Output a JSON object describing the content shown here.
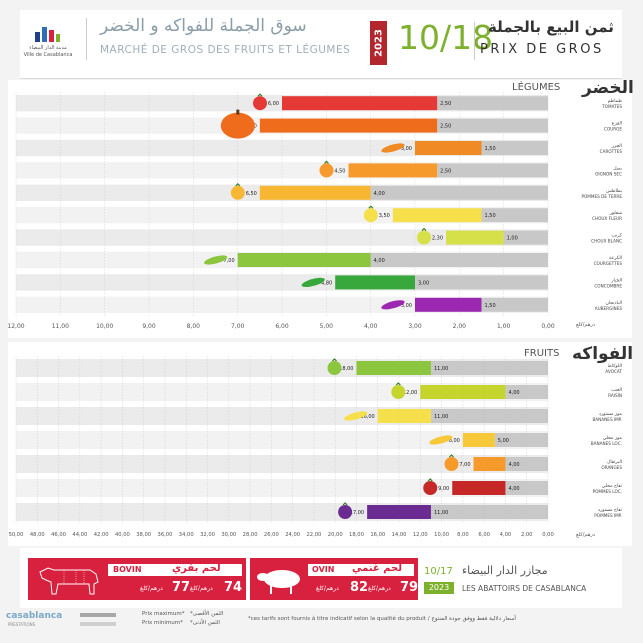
{
  "colors": {
    "brand_green": "#7db02d",
    "brand_red": "#d8203f",
    "gray_bar": "#c8c8c8",
    "dark_bar": "#a8a8a8"
  },
  "header": {
    "logo_caption_ar": "مدينة الدار البيضاء",
    "logo_caption_fr": "Ville de Casablanca",
    "market_title_ar": "سوق الجملة للفواكه و الخضر",
    "market_title_fr": "MARCHÉ DE GROS DES FRUITS ET LÉGUMES",
    "year": "2023",
    "date": "10/18",
    "price_title_ar": "ثمن البيع بالجملة",
    "price_title_fr": "PRIX DE GROS"
  },
  "chart_data": [
    {
      "type": "bar",
      "title": "LÉGUMES",
      "title_ar": "الخضر",
      "xlabel": "درهم/كلغ",
      "xlim": [
        12,
        0
      ],
      "x_ticks": [
        "12,00",
        "11,00",
        "10,00",
        "9,00",
        "8,00",
        "7,00",
        "6,00",
        "5,00",
        "4,00",
        "3,00",
        "2,00",
        "1,00",
        "0,00"
      ],
      "categories": [
        {
          "ar": "طماطم",
          "fr": "TOMATES",
          "max": 6.0,
          "min": 2.5,
          "max_label": "6,00",
          "min_label": "2,50",
          "color": "#e53935",
          "icon": "tomato-icon"
        },
        {
          "ar": "القرع",
          "fr": "COURGE",
          "max": 6.5,
          "min": 2.5,
          "max_label": "6,50",
          "min_label": "2,50",
          "color": "#ef6c1c",
          "icon": "pumpkin-icon"
        },
        {
          "ar": "الجزر",
          "fr": "CAROTTES",
          "max": 3.0,
          "min": 1.5,
          "max_label": "3,00",
          "min_label": "1,50",
          "color": "#f08a24",
          "icon": "carrot-icon"
        },
        {
          "ar": "بصل",
          "fr": "OIGNON SEC",
          "max": 4.5,
          "min": 2.5,
          "max_label": "4,50",
          "min_label": "2,50",
          "color": "#f59a2b",
          "icon": "onion-icon"
        },
        {
          "ar": "بطاطس",
          "fr": "POMMES DE TERRE",
          "max": 6.5,
          "min": 4.0,
          "max_label": "6,50",
          "min_label": "4,00",
          "color": "#f7b733",
          "icon": "potato-icon"
        },
        {
          "ar": "شفلور",
          "fr": "CHOUX FLEUR",
          "max": 3.5,
          "min": 1.5,
          "max_label": "3,50",
          "min_label": "1,50",
          "color": "#f5df4a",
          "icon": "cauliflower-icon"
        },
        {
          "ar": "كرنب",
          "fr": "CHOUX BLANC",
          "max": 2.3,
          "min": 1.0,
          "max_label": "2,30",
          "min_label": "1,00",
          "color": "#d6e049",
          "icon": "cabbage-icon"
        },
        {
          "ar": "الكرعة",
          "fr": "COURGETTES",
          "max": 7.0,
          "min": 4.0,
          "max_label": "7,00",
          "min_label": "4,00",
          "color": "#8cc63f",
          "icon": "zucchini-icon"
        },
        {
          "ar": "الخيار",
          "fr": "CONCOMBRE",
          "max": 4.8,
          "min": 3.0,
          "max_label": "4,80",
          "min_label": "3,00",
          "color": "#38a83c",
          "icon": "cucumber-icon"
        },
        {
          "ar": "الباذنجان",
          "fr": "AUBERGINES",
          "max": 3.0,
          "min": 1.5,
          "max_label": "3,00",
          "min_label": "1,50",
          "color": "#9c27b0",
          "icon": "eggplant-icon"
        }
      ]
    },
    {
      "type": "bar",
      "title": "FRUITS",
      "title_ar": "الفواكه",
      "xlabel": "درهم/كلغ",
      "xlim": [
        50,
        0
      ],
      "x_ticks": [
        "50,00",
        "48,00",
        "46,00",
        "44,00",
        "42,00",
        "40,00",
        "38,00",
        "36,00",
        "34,00",
        "32,00",
        "30,00",
        "28,00",
        "26,00",
        "24,00",
        "22,00",
        "20,00",
        "18,00",
        "16,00",
        "14,00",
        "12,00",
        "10,00",
        "8,00",
        "6,00",
        "4,00",
        "2,00",
        "0,00"
      ],
      "categories": [
        {
          "ar": "اللوكاط",
          "fr": "AVOCAT",
          "max": 18.0,
          "min": 11.0,
          "max_label": "18,00",
          "min_label": "11,00",
          "color": "#8cc63f",
          "icon": "avocado-icon"
        },
        {
          "ar": "العنب",
          "fr": "RAISIN",
          "max": 12.0,
          "min": 4.0,
          "max_label": "12,00",
          "min_label": "4,00",
          "color": "#c5d52e",
          "icon": "grapes-icon"
        },
        {
          "ar": "موز مستورد",
          "fr": "BANANES IMP.",
          "max": 16.0,
          "min": 11.0,
          "max_label": "16,00",
          "min_label": "11,00",
          "color": "#f5df4a",
          "icon": "banana-imp-icon"
        },
        {
          "ar": "موز محلي",
          "fr": "BANANES LOC.",
          "max": 8.0,
          "min": 5.0,
          "max_label": "8,00",
          "min_label": "5,00",
          "color": "#f7c93a",
          "icon": "banana-loc-icon"
        },
        {
          "ar": "البرتقال",
          "fr": "ORANGES",
          "max": 7.0,
          "min": 4.0,
          "max_label": "7,00",
          "min_label": "4,00",
          "color": "#f59a2b",
          "icon": "orange-icon"
        },
        {
          "ar": "تفاح محلي",
          "fr": "POMMES LOC.",
          "max": 9.0,
          "min": 4.0,
          "max_label": "9,00",
          "min_label": "4,00",
          "color": "#c62828",
          "icon": "apple-loc-icon"
        },
        {
          "ar": "تفاح مستورد",
          "fr": "POMMES IMP.",
          "max": 17.0,
          "min": 11.0,
          "max_label": "17,00",
          "min_label": "11,00",
          "color": "#6a2c91",
          "icon": "apple-imp-icon"
        }
      ]
    }
  ],
  "meat": {
    "bovin_ar": "لحم بقري",
    "bovin_fr": "BOVIN",
    "bovin_max": "77",
    "bovin_min": "74",
    "bovin_unit": "درهم/كلغ",
    "ovin_ar": "لحم غنمي",
    "ovin_fr": "OVIN",
    "ovin_max": "82",
    "ovin_min": "79",
    "ovin_unit": "درهم/كلغ",
    "date": "10/17",
    "year": "2023",
    "abattoir_ar": "مجازر الدار البيضاء",
    "abattoir_fr": "LES ABATTOIRS DE CASABLANCA"
  },
  "footer": {
    "brand": "casablanca",
    "brand_sub": "PRESTATIONS",
    "prix_max": "Prix maximum*",
    "prix_min": "Prix minimum*",
    "prix_max_ar": "*الثمن الأقصى",
    "prix_min_ar": "*الثمن الأدنى",
    "note": "*ces tarifs sont fournis à titre indicatif selon la qualité du produit / أسعار دلالية فقط ووفق جودة المنتوج"
  }
}
